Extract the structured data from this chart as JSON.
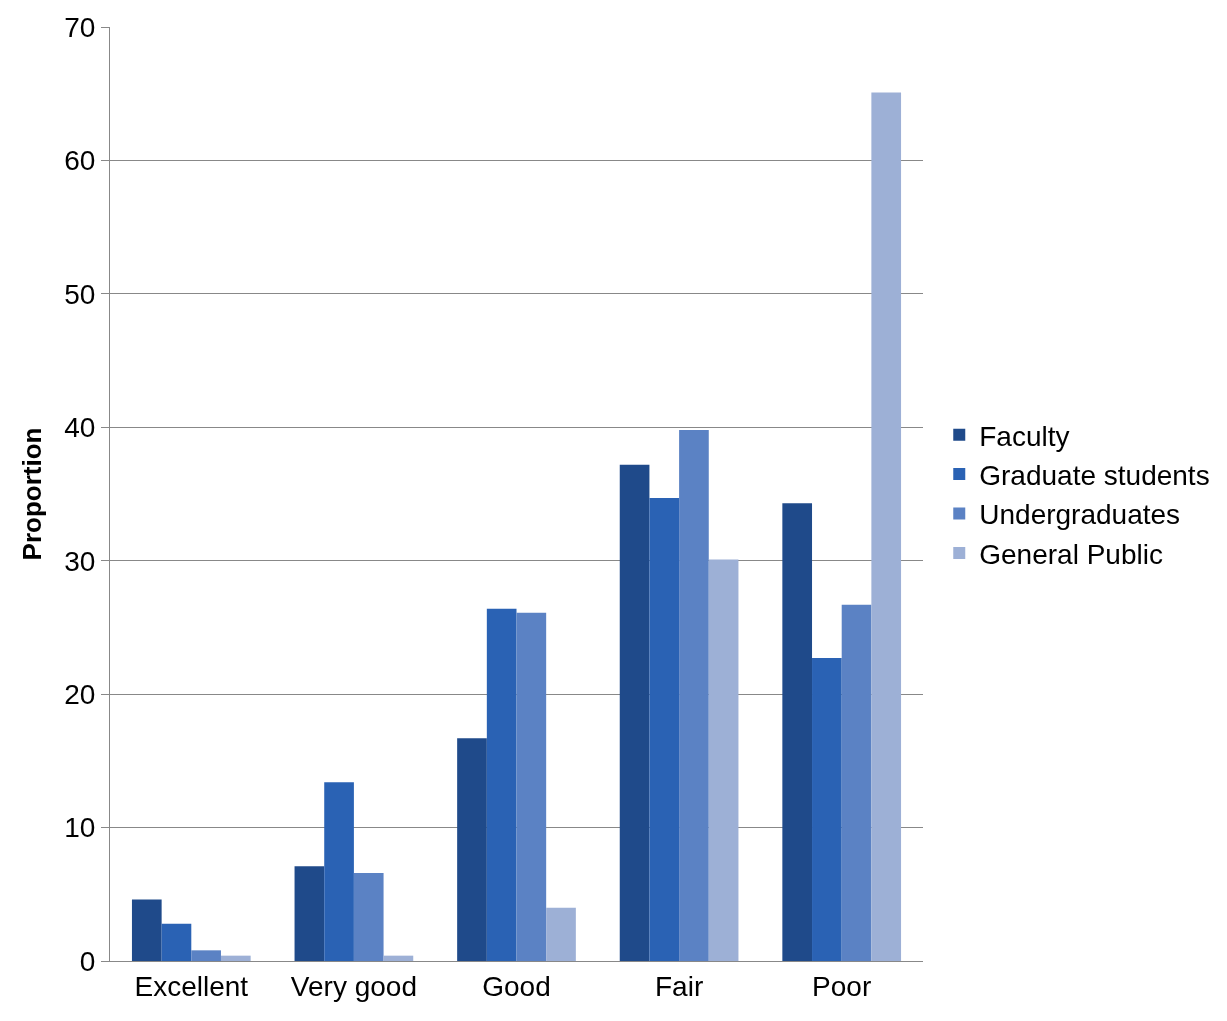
{
  "chart_data": {
    "type": "bar",
    "ylabel": "Proportion",
    "categories": [
      "Excellent",
      "Very good",
      "Good",
      "Fair",
      "Poor"
    ],
    "series": [
      {
        "name": "Faculty",
        "color": "#1f4a8a",
        "values": [
          4.6,
          7.1,
          16.7,
          37.2,
          34.3
        ]
      },
      {
        "name": "Graduate students",
        "color": "#2a62b4",
        "values": [
          2.8,
          13.4,
          26.4,
          34.7,
          22.7
        ]
      },
      {
        "name": "Undergraduates",
        "color": "#5b82c4",
        "values": [
          0.8,
          6.6,
          26.1,
          39.8,
          26.7
        ]
      },
      {
        "name": "General Public",
        "color": "#9db0d6",
        "values": [
          0.4,
          0.4,
          4.0,
          30.1,
          65.1
        ]
      }
    ],
    "ylim": [
      0,
      70
    ],
    "yticks": [
      0,
      10,
      20,
      30,
      40,
      50,
      60,
      70
    ],
    "grid": "y",
    "legend": "right"
  }
}
